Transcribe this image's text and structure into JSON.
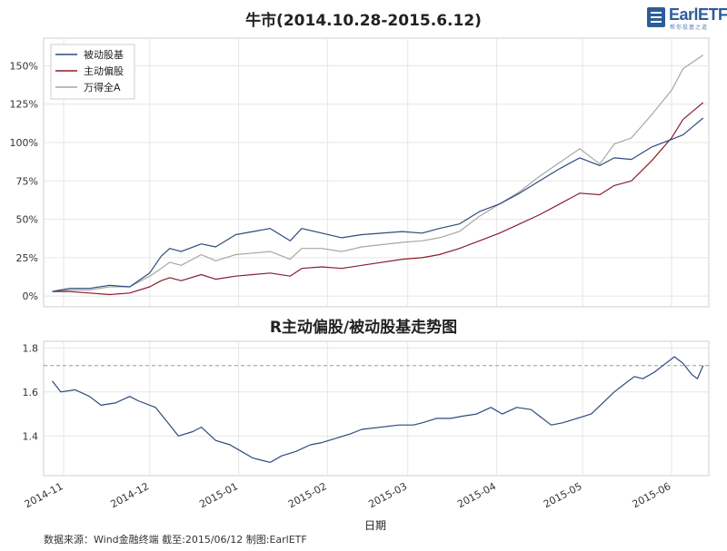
{
  "brand": {
    "name": "EarlETF",
    "tagline": "帮你投基之道"
  },
  "source_note": "数据来源：Wind金融终端 截至:2015/06/12 制图:EarlETF",
  "colors": {
    "passive": "#2e4a7d",
    "active": "#8b1e2e",
    "wind_a": "#a9a6a4",
    "grid": "#e6e6e6",
    "ref_line": "#999999"
  },
  "chart_data": [
    {
      "type": "line",
      "title": "牛市(2014.10.28-2015.6.12)",
      "ylim": [
        -0.07,
        1.68
      ],
      "yticks": [
        0,
        0.25,
        0.5,
        0.75,
        1.0,
        1.25,
        1.5
      ],
      "ytick_labels": [
        "0%",
        "25%",
        "50%",
        "75%",
        "100%",
        "125%",
        "150%"
      ],
      "grid": true,
      "legend": {
        "position": "top-left",
        "entries": [
          "被动股基",
          "主动偏股",
          "万得全A"
        ]
      },
      "series": [
        {
          "name": "被动股基",
          "points": [
            [
              "2014-10-28",
              0.03
            ],
            [
              "2014-11-03",
              0.05
            ],
            [
              "2014-11-10",
              0.05
            ],
            [
              "2014-11-17",
              0.07
            ],
            [
              "2014-11-24",
              0.06
            ],
            [
              "2014-12-01",
              0.15
            ],
            [
              "2014-12-05",
              0.26
            ],
            [
              "2014-12-08",
              0.31
            ],
            [
              "2014-12-12",
              0.29
            ],
            [
              "2014-12-19",
              0.34
            ],
            [
              "2014-12-24",
              0.32
            ],
            [
              "2014-12-31",
              0.4
            ],
            [
              "2015-01-06",
              0.42
            ],
            [
              "2015-01-12",
              0.44
            ],
            [
              "2015-01-19",
              0.36
            ],
            [
              "2015-01-23",
              0.44
            ],
            [
              "2015-01-30",
              0.41
            ],
            [
              "2015-02-06",
              0.38
            ],
            [
              "2015-02-13",
              0.4
            ],
            [
              "2015-02-27",
              0.42
            ],
            [
              "2015-03-06",
              0.41
            ],
            [
              "2015-03-12",
              0.44
            ],
            [
              "2015-03-19",
              0.47
            ],
            [
              "2015-03-26",
              0.55
            ],
            [
              "2015-04-02",
              0.6
            ],
            [
              "2015-04-09",
              0.67
            ],
            [
              "2015-04-16",
              0.75
            ],
            [
              "2015-04-23",
              0.83
            ],
            [
              "2015-04-30",
              0.9
            ],
            [
              "2015-05-07",
              0.85
            ],
            [
              "2015-05-12",
              0.9
            ],
            [
              "2015-05-18",
              0.89
            ],
            [
              "2015-05-25",
              0.97
            ],
            [
              "2015-06-01",
              1.02
            ],
            [
              "2015-06-05",
              1.05
            ],
            [
              "2015-06-12",
              1.16
            ]
          ]
        },
        {
          "name": "主动偏股",
          "points": [
            [
              "2014-10-28",
              0.03
            ],
            [
              "2014-11-03",
              0.03
            ],
            [
              "2014-11-10",
              0.02
            ],
            [
              "2014-11-17",
              0.01
            ],
            [
              "2014-11-24",
              0.02
            ],
            [
              "2014-12-01",
              0.06
            ],
            [
              "2014-12-05",
              0.1
            ],
            [
              "2014-12-08",
              0.12
            ],
            [
              "2014-12-12",
              0.1
            ],
            [
              "2014-12-19",
              0.14
            ],
            [
              "2014-12-24",
              0.11
            ],
            [
              "2014-12-31",
              0.13
            ],
            [
              "2015-01-06",
              0.14
            ],
            [
              "2015-01-12",
              0.15
            ],
            [
              "2015-01-19",
              0.13
            ],
            [
              "2015-01-23",
              0.18
            ],
            [
              "2015-01-30",
              0.19
            ],
            [
              "2015-02-06",
              0.18
            ],
            [
              "2015-02-13",
              0.2
            ],
            [
              "2015-02-27",
              0.24
            ],
            [
              "2015-03-06",
              0.25
            ],
            [
              "2015-03-12",
              0.27
            ],
            [
              "2015-03-19",
              0.31
            ],
            [
              "2015-03-26",
              0.36
            ],
            [
              "2015-04-02",
              0.41
            ],
            [
              "2015-04-09",
              0.47
            ],
            [
              "2015-04-16",
              0.53
            ],
            [
              "2015-04-23",
              0.6
            ],
            [
              "2015-04-30",
              0.67
            ],
            [
              "2015-05-07",
              0.66
            ],
            [
              "2015-05-12",
              0.72
            ],
            [
              "2015-05-18",
              0.75
            ],
            [
              "2015-05-25",
              0.88
            ],
            [
              "2015-06-01",
              1.03
            ],
            [
              "2015-06-05",
              1.15
            ],
            [
              "2015-06-12",
              1.26
            ]
          ]
        },
        {
          "name": "万得全A",
          "points": [
            [
              "2014-10-28",
              0.03
            ],
            [
              "2014-11-03",
              0.04
            ],
            [
              "2014-11-10",
              0.04
            ],
            [
              "2014-11-17",
              0.06
            ],
            [
              "2014-11-24",
              0.06
            ],
            [
              "2014-12-01",
              0.13
            ],
            [
              "2014-12-05",
              0.18
            ],
            [
              "2014-12-08",
              0.22
            ],
            [
              "2014-12-12",
              0.2
            ],
            [
              "2014-12-19",
              0.27
            ],
            [
              "2014-12-24",
              0.23
            ],
            [
              "2014-12-31",
              0.27
            ],
            [
              "2015-01-06",
              0.28
            ],
            [
              "2015-01-12",
              0.29
            ],
            [
              "2015-01-19",
              0.24
            ],
            [
              "2015-01-23",
              0.31
            ],
            [
              "2015-01-30",
              0.31
            ],
            [
              "2015-02-06",
              0.29
            ],
            [
              "2015-02-13",
              0.32
            ],
            [
              "2015-02-27",
              0.35
            ],
            [
              "2015-03-06",
              0.36
            ],
            [
              "2015-03-12",
              0.38
            ],
            [
              "2015-03-19",
              0.42
            ],
            [
              "2015-03-26",
              0.52
            ],
            [
              "2015-04-02",
              0.6
            ],
            [
              "2015-04-09",
              0.68
            ],
            [
              "2015-04-16",
              0.78
            ],
            [
              "2015-04-23",
              0.87
            ],
            [
              "2015-04-30",
              0.96
            ],
            [
              "2015-05-07",
              0.86
            ],
            [
              "2015-05-12",
              0.99
            ],
            [
              "2015-05-18",
              1.03
            ],
            [
              "2015-05-25",
              1.18
            ],
            [
              "2015-06-01",
              1.34
            ],
            [
              "2015-06-05",
              1.48
            ],
            [
              "2015-06-12",
              1.57
            ]
          ]
        }
      ]
    },
    {
      "type": "line",
      "title": "R主动偏股/被动股基走势图",
      "xlabel": "日期",
      "ylim": [
        1.22,
        1.83
      ],
      "yticks": [
        1.4,
        1.6,
        1.8
      ],
      "ytick_labels": [
        "1.4",
        "1.6",
        "1.8"
      ],
      "grid": true,
      "reference_line": 1.72,
      "xticks": [
        "2014-11-01",
        "2014-12-01",
        "2015-01-01",
        "2015-02-01",
        "2015-03-01",
        "2015-04-01",
        "2015-05-01",
        "2015-06-01"
      ],
      "xtick_labels": [
        "2014-11",
        "2014-12",
        "2015-01",
        "2015-02",
        "2015-03",
        "2015-04",
        "2015-05",
        "2015-06"
      ],
      "series": [
        {
          "points": [
            [
              "2014-10-28",
              1.65
            ],
            [
              "2014-10-31",
              1.6
            ],
            [
              "2014-11-05",
              1.61
            ],
            [
              "2014-11-10",
              1.58
            ],
            [
              "2014-11-14",
              1.54
            ],
            [
              "2014-11-19",
              1.55
            ],
            [
              "2014-11-24",
              1.58
            ],
            [
              "2014-11-27",
              1.56
            ],
            [
              "2014-12-03",
              1.53
            ],
            [
              "2014-12-08",
              1.45
            ],
            [
              "2014-12-11",
              1.4
            ],
            [
              "2014-12-16",
              1.42
            ],
            [
              "2014-12-19",
              1.44
            ],
            [
              "2014-12-24",
              1.38
            ],
            [
              "2014-12-29",
              1.36
            ],
            [
              "2015-01-02",
              1.33
            ],
            [
              "2015-01-06",
              1.3
            ],
            [
              "2015-01-09",
              1.29
            ],
            [
              "2015-01-12",
              1.28
            ],
            [
              "2015-01-16",
              1.31
            ],
            [
              "2015-01-21",
              1.33
            ],
            [
              "2015-01-26",
              1.36
            ],
            [
              "2015-01-30",
              1.37
            ],
            [
              "2015-02-04",
              1.39
            ],
            [
              "2015-02-09",
              1.41
            ],
            [
              "2015-02-13",
              1.43
            ],
            [
              "2015-02-26",
              1.45
            ],
            [
              "2015-03-03",
              1.45
            ],
            [
              "2015-03-06",
              1.46
            ],
            [
              "2015-03-11",
              1.48
            ],
            [
              "2015-03-16",
              1.48
            ],
            [
              "2015-03-20",
              1.49
            ],
            [
              "2015-03-25",
              1.5
            ],
            [
              "2015-03-30",
              1.53
            ],
            [
              "2015-04-03",
              1.5
            ],
            [
              "2015-04-08",
              1.53
            ],
            [
              "2015-04-13",
              1.52
            ],
            [
              "2015-04-16",
              1.49
            ],
            [
              "2015-04-20",
              1.45
            ],
            [
              "2015-04-24",
              1.46
            ],
            [
              "2015-04-29",
              1.48
            ],
            [
              "2015-05-04",
              1.5
            ],
            [
              "2015-05-08",
              1.55
            ],
            [
              "2015-05-12",
              1.6
            ],
            [
              "2015-05-15",
              1.63
            ],
            [
              "2015-05-19",
              1.67
            ],
            [
              "2015-05-22",
              1.66
            ],
            [
              "2015-05-26",
              1.69
            ],
            [
              "2015-05-29",
              1.72
            ],
            [
              "2015-06-02",
              1.76
            ],
            [
              "2015-06-05",
              1.73
            ],
            [
              "2015-06-08",
              1.68
            ],
            [
              "2015-06-10",
              1.66
            ],
            [
              "2015-06-12",
              1.72
            ]
          ]
        }
      ]
    }
  ]
}
